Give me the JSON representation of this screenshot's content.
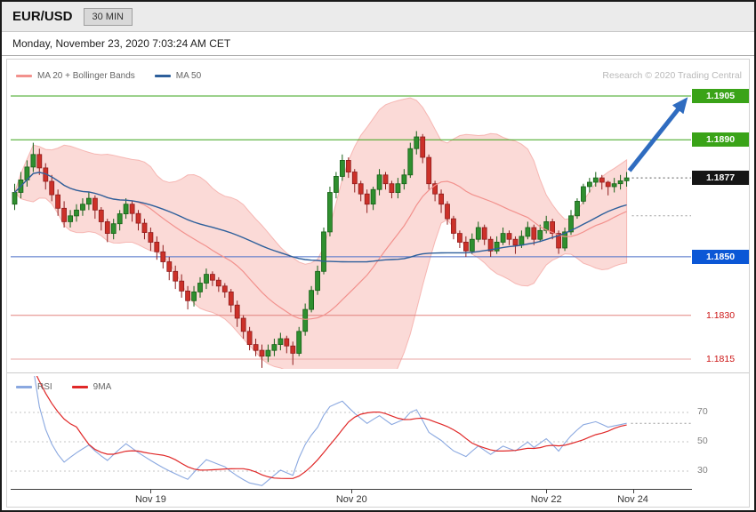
{
  "window": {
    "title": "EUR/USD",
    "timeframe_badge": "30 MIN",
    "datetime": "Monday, November 23, 2020 7:03:24 AM CET",
    "credit": "Research © 2020 Trading Central"
  },
  "legend_main": [
    {
      "label": "MA 20 + Bollinger Bands",
      "color": "#f2918d"
    },
    {
      "label": "MA 50",
      "color": "#2d5f9b"
    }
  ],
  "legend_rsi": [
    {
      "label": "RSI",
      "color": "#8aa8e0"
    },
    {
      "label": "9MA",
      "color": "#e02828"
    }
  ],
  "chart_data": {
    "type": "candlestick",
    "symbol": "EUR/USD",
    "interval": "30 MIN",
    "title": "EUR/USD 30 MIN",
    "price_range_visible": [
      1.1812,
      1.1905
    ],
    "x_ticks": [
      {
        "label": "Nov 19",
        "index": 22
      },
      {
        "label": "Nov 20",
        "index": 54.5
      },
      {
        "label": "Nov 22",
        "index": 86
      },
      {
        "label": "Nov 24",
        "index": 100
      }
    ],
    "levels": [
      {
        "price": 1.1905,
        "label": "1.1905",
        "style": "solid",
        "extent": "full",
        "line_color": "#3aa318",
        "label_bg": "#3aa318",
        "label_fg": "#ffffff"
      },
      {
        "price": 1.189,
        "label": "1.1890",
        "style": "solid",
        "extent": "full",
        "line_color": "#3aa318",
        "label_bg": "#3aa318",
        "label_fg": "#ffffff"
      },
      {
        "price": 1.1877,
        "label": "1.1877",
        "style": "dotted",
        "extent": "right",
        "line_color": "#555555",
        "label_bg": "#161616",
        "label_fg": "#ffffff"
      },
      {
        "price": 1.1864,
        "label": null,
        "style": "dotted",
        "extent": "right",
        "line_color": "#9a9a9a",
        "label_bg": null,
        "label_fg": null
      },
      {
        "price": 1.185,
        "label": "1.1850",
        "style": "solid",
        "extent": "full",
        "line_color": "#4a6fc8",
        "label_bg": "#0b57d6",
        "label_fg": "#ffffff"
      },
      {
        "price": 1.183,
        "label": "1.1830",
        "style": "solid",
        "extent": "full",
        "line_color": "#e2827e",
        "label_bg": null,
        "label_fg": "#cc1414"
      },
      {
        "price": 1.1815,
        "label": "1.1815",
        "style": "solid",
        "extent": "full",
        "line_color": "#e8a7a4",
        "label_bg": null,
        "label_fg": "#cc1414"
      }
    ],
    "annotation_arrow": {
      "from_price": 1.1877,
      "to_price": 1.1905,
      "color": "#2f6cc0"
    },
    "style": {
      "up_fill": "#2f8f2f",
      "up_border": "#176017",
      "down_fill": "#cc3129",
      "down_border": "#8f1d1d",
      "boll_fill": "rgba(246,166,160,0.42)",
      "boll_edge": "rgba(240,140,135,0.55)",
      "ma20_color": "#f2918d",
      "ma50_color": "#2d5f9b"
    },
    "indicators": {
      "ma20_bollinger": {
        "period": 20,
        "stddev": 2
      },
      "ma50": {
        "period": 50
      }
    },
    "rsi": {
      "period": 14,
      "ma_period": 9,
      "gridlines": [
        70,
        50,
        30
      ],
      "line_color": "#8aa8e0",
      "ma_color": "#e02828",
      "grid_color": "#c6c6c6"
    },
    "candles": [
      [
        1.1868,
        1.1875,
        1.1866,
        1.1872
      ],
      [
        1.1872,
        1.1879,
        1.187,
        1.18763
      ],
      [
        1.18763,
        1.1883,
        1.1874,
        1.18807
      ],
      [
        1.18807,
        1.1889,
        1.1879,
        1.1885
      ],
      [
        1.1885,
        1.1887,
        1.1878,
        1.18804
      ],
      [
        1.18804,
        1.1882,
        1.1873,
        1.18758
      ],
      [
        1.18758,
        1.1878,
        1.1869,
        1.18712
      ],
      [
        1.18712,
        1.1873,
        1.1864,
        1.18666
      ],
      [
        1.18666,
        1.1869,
        1.186,
        1.1862
      ],
      [
        1.1862,
        1.1866,
        1.186,
        1.1864
      ],
      [
        1.1864,
        1.1868,
        1.1862,
        1.1866
      ],
      [
        1.1866,
        1.187,
        1.1864,
        1.1868
      ],
      [
        1.1868,
        1.1872,
        1.1866,
        1.187
      ],
      [
        1.187,
        1.1871,
        1.1863,
        1.1866
      ],
      [
        1.1866,
        1.1867,
        1.1859,
        1.1862
      ],
      [
        1.1862,
        1.1863,
        1.1855,
        1.1858
      ],
      [
        1.1858,
        1.1863,
        1.1856,
        1.18613
      ],
      [
        1.18613,
        1.1866,
        1.1859,
        1.18647
      ],
      [
        1.18647,
        1.187,
        1.1863,
        1.1868
      ],
      [
        1.1868,
        1.1869,
        1.1862,
        1.18648
      ],
      [
        1.18648,
        1.1866,
        1.1859,
        1.18615
      ],
      [
        1.18615,
        1.1863,
        1.1856,
        1.18583
      ],
      [
        1.18583,
        1.186,
        1.1852,
        1.1855
      ],
      [
        1.1855,
        1.1857,
        1.1849,
        1.18517
      ],
      [
        1.18517,
        1.1854,
        1.1846,
        1.18483
      ],
      [
        1.18483,
        1.185,
        1.1842,
        1.1845
      ],
      [
        1.1845,
        1.1847,
        1.1839,
        1.18417
      ],
      [
        1.18417,
        1.1844,
        1.1836,
        1.18383
      ],
      [
        1.18383,
        1.184,
        1.1832,
        1.1835
      ],
      [
        1.1835,
        1.184,
        1.1833,
        1.1838
      ],
      [
        1.1838,
        1.1843,
        1.1836,
        1.1841
      ],
      [
        1.1841,
        1.1846,
        1.1839,
        1.1844
      ],
      [
        1.1844,
        1.1845,
        1.184,
        1.1842
      ],
      [
        1.1842,
        1.1843,
        1.1838,
        1.184
      ],
      [
        1.184,
        1.1841,
        1.1836,
        1.1838
      ],
      [
        1.1838,
        1.1839,
        1.1831,
        1.18335
      ],
      [
        1.18335,
        1.1835,
        1.1826,
        1.1829
      ],
      [
        1.1829,
        1.183,
        1.1822,
        1.18245
      ],
      [
        1.18245,
        1.1826,
        1.1818,
        1.182
      ],
      [
        1.182,
        1.1822,
        1.1816,
        1.1818
      ],
      [
        1.1818,
        1.182,
        1.1812,
        1.1816
      ],
      [
        1.1816,
        1.182,
        1.1814,
        1.1818
      ],
      [
        1.1818,
        1.1822,
        1.1816,
        1.182
      ],
      [
        1.182,
        1.1824,
        1.1818,
        1.1822
      ],
      [
        1.1822,
        1.1823,
        1.1817,
        1.18195
      ],
      [
        1.18195,
        1.1821,
        1.1813,
        1.1817
      ],
      [
        1.1817,
        1.1826,
        1.1816,
        1.18245
      ],
      [
        1.18245,
        1.1834,
        1.1823,
        1.1832
      ],
      [
        1.1832,
        1.184,
        1.1831,
        1.18385
      ],
      [
        1.18385,
        1.1847,
        1.1837,
        1.1845
      ],
      [
        1.1845,
        1.186,
        1.1844,
        1.18585
      ],
      [
        1.18585,
        1.1874,
        1.1857,
        1.1872
      ],
      [
        1.1872,
        1.1879,
        1.187,
        1.18775
      ],
      [
        1.18775,
        1.1885,
        1.1876,
        1.1883
      ],
      [
        1.1883,
        1.1884,
        1.1877,
        1.1879
      ],
      [
        1.1879,
        1.188,
        1.1872,
        1.1875
      ],
      [
        1.1875,
        1.1876,
        1.1869,
        1.18715
      ],
      [
        1.18715,
        1.1873,
        1.1865,
        1.1868
      ],
      [
        1.1868,
        1.1874,
        1.1866,
        1.1873
      ],
      [
        1.1873,
        1.188,
        1.1871,
        1.1878
      ],
      [
        1.1878,
        1.1879,
        1.1873,
        1.1875
      ],
      [
        1.1875,
        1.1876,
        1.187,
        1.1872
      ],
      [
        1.1872,
        1.1877,
        1.187,
        1.1875
      ],
      [
        1.1875,
        1.188,
        1.1873,
        1.1878
      ],
      [
        1.1878,
        1.1889,
        1.1877,
        1.1887
      ],
      [
        1.1887,
        1.1893,
        1.1885,
        1.1891
      ],
      [
        1.1891,
        1.1892,
        1.1882,
        1.1884
      ],
      [
        1.1884,
        1.1885,
        1.1873,
        1.1875
      ],
      [
        1.1875,
        1.1876,
        1.1869,
        1.18715
      ],
      [
        1.18715,
        1.1873,
        1.1865,
        1.1868
      ],
      [
        1.1868,
        1.1869,
        1.1861,
        1.1863
      ],
      [
        1.1863,
        1.1864,
        1.1856,
        1.1858
      ],
      [
        1.1858,
        1.1859,
        1.1853,
        1.1855
      ],
      [
        1.1855,
        1.1857,
        1.185,
        1.1852
      ],
      [
        1.1852,
        1.1858,
        1.1851,
        1.1856
      ],
      [
        1.1856,
        1.1862,
        1.1855,
        1.186
      ],
      [
        1.186,
        1.1861,
        1.1854,
        1.1856
      ],
      [
        1.1856,
        1.1857,
        1.185,
        1.1852
      ],
      [
        1.1852,
        1.1857,
        1.1851,
        1.1855
      ],
      [
        1.1855,
        1.186,
        1.1854,
        1.1858
      ],
      [
        1.1858,
        1.1859,
        1.1854,
        1.1856
      ],
      [
        1.1856,
        1.1857,
        1.1851,
        1.1854
      ],
      [
        1.1854,
        1.1859,
        1.1853,
        1.1857
      ],
      [
        1.1857,
        1.1862,
        1.1856,
        1.186
      ],
      [
        1.186,
        1.1861,
        1.1854,
        1.1856
      ],
      [
        1.1856,
        1.1861,
        1.1855,
        1.1859
      ],
      [
        1.1859,
        1.1864,
        1.1858,
        1.1862
      ],
      [
        1.1862,
        1.1863,
        1.1856,
        1.1858
      ],
      [
        1.1858,
        1.1859,
        1.1851,
        1.1853
      ],
      [
        1.1853,
        1.186,
        1.1852,
        1.18585
      ],
      [
        1.18585,
        1.1866,
        1.18575,
        1.1864
      ],
      [
        1.1864,
        1.187,
        1.1863,
        1.1869
      ],
      [
        1.1869,
        1.1875,
        1.1868,
        1.1874
      ],
      [
        1.1874,
        1.1877,
        1.1872,
        1.18755
      ],
      [
        1.18755,
        1.1879,
        1.1874,
        1.1877
      ],
      [
        1.1877,
        1.1878,
        1.1873,
        1.18755
      ],
      [
        1.18755,
        1.1876,
        1.1871,
        1.1874
      ],
      [
        1.1874,
        1.1877,
        1.1872,
        1.1875
      ],
      [
        1.1875,
        1.1878,
        1.1873,
        1.1876
      ],
      [
        1.1876,
        1.1879,
        1.1874,
        1.1877
      ]
    ]
  }
}
